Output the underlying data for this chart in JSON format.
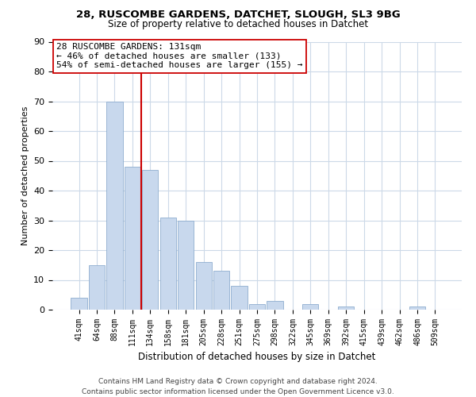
{
  "title1": "28, RUSCOMBE GARDENS, DATCHET, SLOUGH, SL3 9BG",
  "title2": "Size of property relative to detached houses in Datchet",
  "xlabel": "Distribution of detached houses by size in Datchet",
  "ylabel": "Number of detached properties",
  "bar_labels": [
    "41sqm",
    "64sqm",
    "88sqm",
    "111sqm",
    "134sqm",
    "158sqm",
    "181sqm",
    "205sqm",
    "228sqm",
    "251sqm",
    "275sqm",
    "298sqm",
    "322sqm",
    "345sqm",
    "369sqm",
    "392sqm",
    "415sqm",
    "439sqm",
    "462sqm",
    "486sqm",
    "509sqm"
  ],
  "bar_values": [
    4,
    15,
    70,
    48,
    47,
    31,
    30,
    16,
    13,
    8,
    2,
    3,
    0,
    2,
    0,
    1,
    0,
    0,
    0,
    1,
    0
  ],
  "bar_color": "#c8d8ed",
  "bar_edge_color": "#8faecf",
  "vline_color": "#cc0000",
  "ylim": [
    0,
    90
  ],
  "yticks": [
    0,
    10,
    20,
    30,
    40,
    50,
    60,
    70,
    80,
    90
  ],
  "annotation_title": "28 RUSCOMBE GARDENS: 131sqm",
  "annotation_line1": "← 46% of detached houses are smaller (133)",
  "annotation_line2": "54% of semi-detached houses are larger (155) →",
  "annotation_box_color": "#ffffff",
  "annotation_box_edge": "#cc0000",
  "footer1": "Contains HM Land Registry data © Crown copyright and database right 2024.",
  "footer2": "Contains public sector information licensed under the Open Government Licence v3.0.",
  "bg_color": "#ffffff",
  "grid_color": "#ccd9e8",
  "fig_width": 6.0,
  "fig_height": 5.0
}
